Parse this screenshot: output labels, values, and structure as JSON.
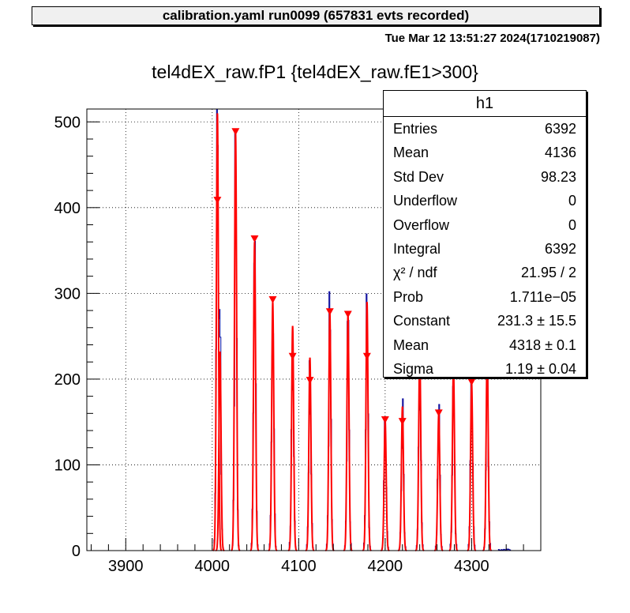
{
  "banner": {
    "text": "calibration.yaml  run0099 (657831 evts recorded)"
  },
  "timestamp": "Tue Mar 12 13:51:27 2024(1710219087)",
  "title": "tel4dEX_raw.fP1 {tel4dEX_raw.fE1>300}",
  "stats": {
    "name": "h1",
    "rows": [
      {
        "label": "Entries",
        "value": "6392"
      },
      {
        "label": "Mean",
        "value": "4136"
      },
      {
        "label": "Std Dev",
        "value": "98.23"
      },
      {
        "label": "Underflow",
        "value": "0"
      },
      {
        "label": "Overflow",
        "value": "0"
      },
      {
        "label": "Integral",
        "value": "6392"
      },
      {
        "label": "χ² / ndf",
        "value": "21.95 / 2"
      },
      {
        "label": "Prob",
        "value": "1.711e−05"
      },
      {
        "label": "Constant",
        "value": "231.3 ± 15.5"
      },
      {
        "label": "Mean",
        "value": "4318 ± 0.1"
      },
      {
        "label": "Sigma",
        "value": "1.19 ± 0.04"
      }
    ]
  },
  "chart_data": {
    "type": "bar",
    "title": "tel4dEX_raw.fP1 {tel4dEX_raw.fE1>300}",
    "xlabel": "",
    "ylabel": "",
    "xlim": [
      3855,
      4380
    ],
    "ylim": [
      0,
      515
    ],
    "x_ticks": [
      3900,
      4000,
      4100,
      4200,
      4300
    ],
    "y_ticks": [
      0,
      100,
      200,
      300,
      400,
      500
    ],
    "grid": true,
    "colors": {
      "histogram": "#000099",
      "fit": "#ff0000",
      "marker": "#ff0000"
    },
    "peaks": [
      {
        "x": 4006,
        "height": 510
      },
      {
        "x": 4009,
        "height": 232
      },
      {
        "x": 4027,
        "height": 488
      },
      {
        "x": 4049,
        "height": 360
      },
      {
        "x": 4070,
        "height": 290
      },
      {
        "x": 4093,
        "height": 262
      },
      {
        "x": 4113,
        "height": 225
      },
      {
        "x": 4136,
        "height": 278
      },
      {
        "x": 4157,
        "height": 275
      },
      {
        "x": 4179,
        "height": 290
      },
      {
        "x": 4200,
        "height": 152
      },
      {
        "x": 4220,
        "height": 168
      },
      {
        "x": 4240,
        "height": 232
      },
      {
        "x": 4262,
        "height": 160
      },
      {
        "x": 4279,
        "height": 214
      },
      {
        "x": 4300,
        "height": 196
      },
      {
        "x": 4318,
        "height": 231
      }
    ],
    "markers": [
      {
        "x": 4006,
        "y": 408
      },
      {
        "x": 4027,
        "y": 488
      },
      {
        "x": 4049,
        "y": 363
      },
      {
        "x": 4070,
        "y": 292
      },
      {
        "x": 4093,
        "y": 226
      },
      {
        "x": 4113,
        "y": 198
      },
      {
        "x": 4136,
        "y": 278
      },
      {
        "x": 4157,
        "y": 275
      },
      {
        "x": 4179,
        "y": 226
      },
      {
        "x": 4200,
        "y": 152
      },
      {
        "x": 4220,
        "y": 150
      },
      {
        "x": 4240,
        "y": 225
      },
      {
        "x": 4262,
        "y": 160
      },
      {
        "x": 4279,
        "y": 204
      },
      {
        "x": 4300,
        "y": 196
      }
    ],
    "fit_sigma": 1.19
  }
}
